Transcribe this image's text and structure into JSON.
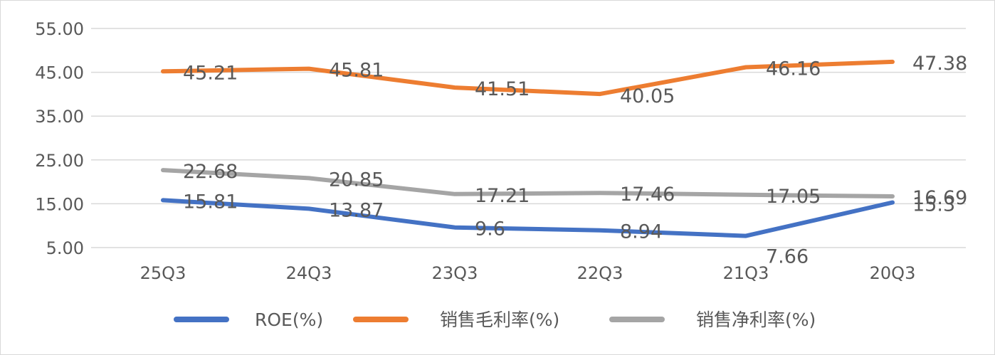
{
  "chart_data": {
    "type": "line",
    "categories": [
      "25Q3",
      "24Q3",
      "23Q3",
      "22Q3",
      "21Q3",
      "20Q3"
    ],
    "ylim": [
      5,
      55
    ],
    "yticks": [
      "5.00",
      "15.00",
      "25.00",
      "35.00",
      "45.00",
      "55.00"
    ],
    "grid": true,
    "legend_position": "bottom",
    "series": [
      {
        "name": "ROE(%)",
        "color": "#4472C4",
        "values": [
          15.81,
          13.87,
          9.6,
          8.94,
          7.66,
          15.3
        ],
        "labels": [
          "15.81",
          "13.87",
          "9.6",
          "8.94",
          "7.66",
          "15.3"
        ]
      },
      {
        "name": "销售毛利率(%)",
        "color": "#ED7D31",
        "values": [
          45.21,
          45.81,
          41.51,
          40.05,
          46.16,
          47.38
        ],
        "labels": [
          "45.21",
          "45.81",
          "41.51",
          "40.05",
          "46.16",
          "47.38"
        ]
      },
      {
        "name": "销售净利率(%)",
        "color": "#A5A5A5",
        "values": [
          22.68,
          20.85,
          17.21,
          17.46,
          17.05,
          16.69
        ],
        "labels": [
          "22.68",
          "20.85",
          "17.21",
          "17.46",
          "17.05",
          "16.69"
        ]
      }
    ]
  }
}
